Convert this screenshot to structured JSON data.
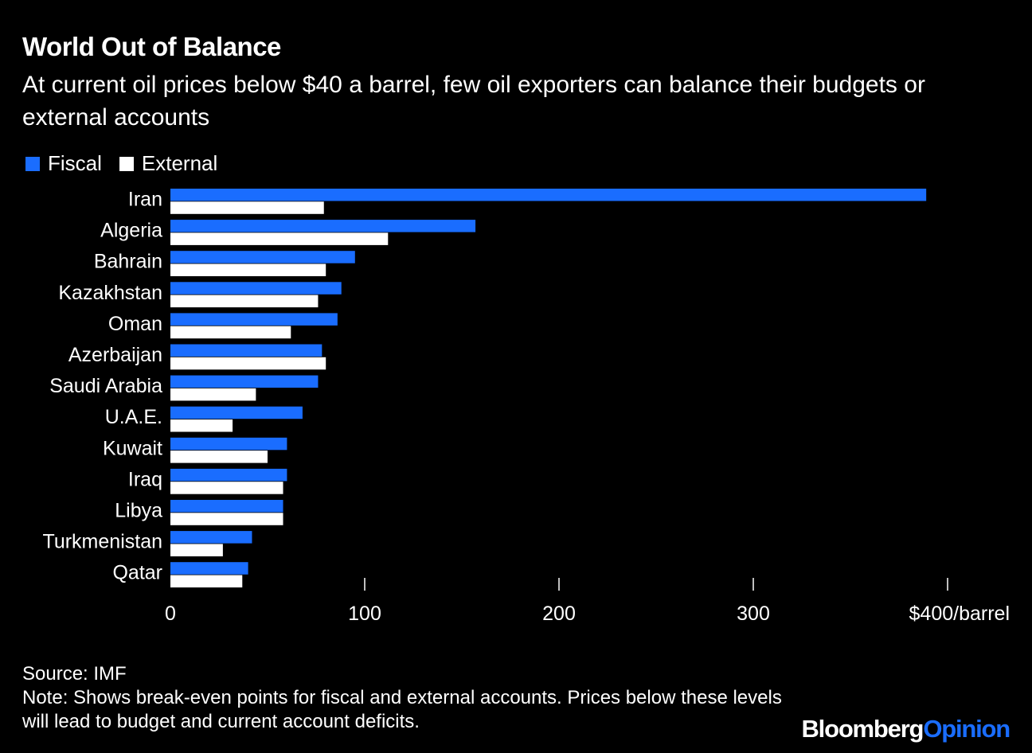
{
  "title": "World Out of Balance",
  "subtitle": "At current oil prices below $40 a barrel, few oil exporters can balance their budgets or external accounts",
  "legend": [
    {
      "label": "Fiscal",
      "color": "#1a6dff"
    },
    {
      "label": "External",
      "color": "#ffffff"
    }
  ],
  "chart_data": {
    "type": "bar",
    "orientation": "horizontal",
    "categories": [
      "Iran",
      "Algeria",
      "Bahrain",
      "Kazakhstan",
      "Oman",
      "Azerbaijan",
      "Saudi Arabia",
      "U.A.E.",
      "Kuwait",
      "Iraq",
      "Libya",
      "Turkmenistan",
      "Qatar"
    ],
    "series": [
      {
        "name": "Fiscal",
        "color": "#1a6dff",
        "values": [
          389,
          157,
          95,
          88,
          86,
          78,
          76,
          68,
          60,
          60,
          58,
          42,
          40
        ]
      },
      {
        "name": "External",
        "color": "#ffffff",
        "values": [
          79,
          112,
          80,
          76,
          62,
          80,
          44,
          32,
          50,
          58,
          58,
          27,
          37
        ]
      }
    ],
    "xlim": [
      0,
      400
    ],
    "xticks": [
      {
        "value": 0,
        "label": "0"
      },
      {
        "value": 100,
        "label": "100"
      },
      {
        "value": 200,
        "label": "200"
      },
      {
        "value": 300,
        "label": "300"
      },
      {
        "value": 400,
        "label": "$400/barrel"
      }
    ],
    "legend_position": "top-left",
    "grid": false
  },
  "footer": {
    "source": "Source: IMF",
    "note": "Note: Shows break-even points for fiscal and external accounts. Prices below these levels will lead to budget and current account deficits."
  },
  "brand": {
    "part1": "Bloomberg",
    "part2": "Opinion",
    "part2_color": "#1a6dff"
  }
}
